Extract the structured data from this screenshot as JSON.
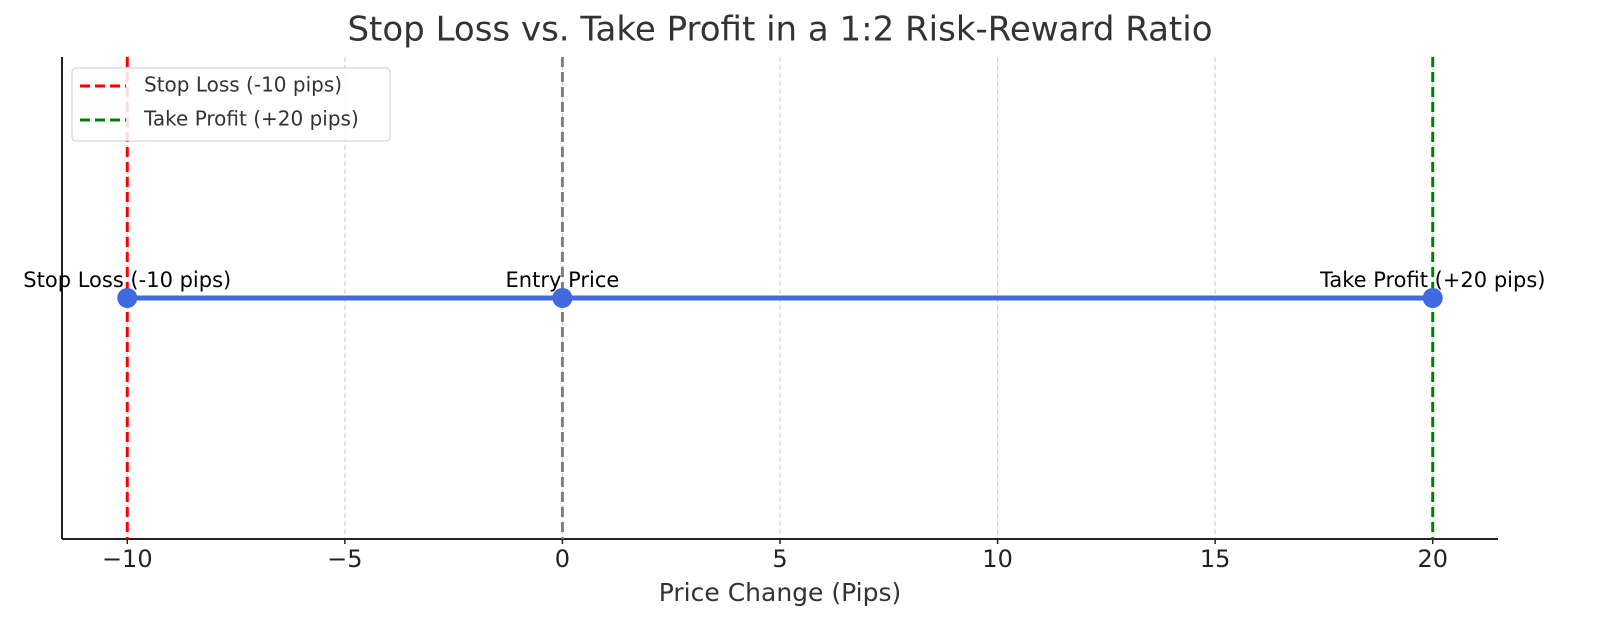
{
  "chart_data": {
    "type": "line",
    "title": "Stop Loss vs. Take Profit in a 1:2 Risk-Reward Ratio",
    "x_label": "Price Change (Pips)",
    "x": [
      -10,
      0,
      20
    ],
    "values": [
      0,
      0,
      0
    ],
    "color": "#4169e1",
    "point_labels": [
      "Stop Loss (-10 pips)",
      "Entry Price",
      "Take Profit (+20 pips)"
    ],
    "vlines": [
      {
        "name": "Stop Loss (-10 pips)",
        "x": -10,
        "color": "#ff0000"
      },
      {
        "x": 0,
        "color": "#808080"
      },
      {
        "name": "Take Profit (+20 pips)",
        "x": 20,
        "color": "#008000"
      }
    ],
    "xlim": [
      -11.5,
      21.5
    ],
    "ylim": [
      -1,
      1
    ],
    "xticks": [
      {
        "value": -10,
        "label": "−10"
      },
      {
        "value": -5,
        "label": "−5"
      },
      0,
      5,
      10,
      15,
      20
    ],
    "grid": true,
    "legend": "upper-left"
  }
}
